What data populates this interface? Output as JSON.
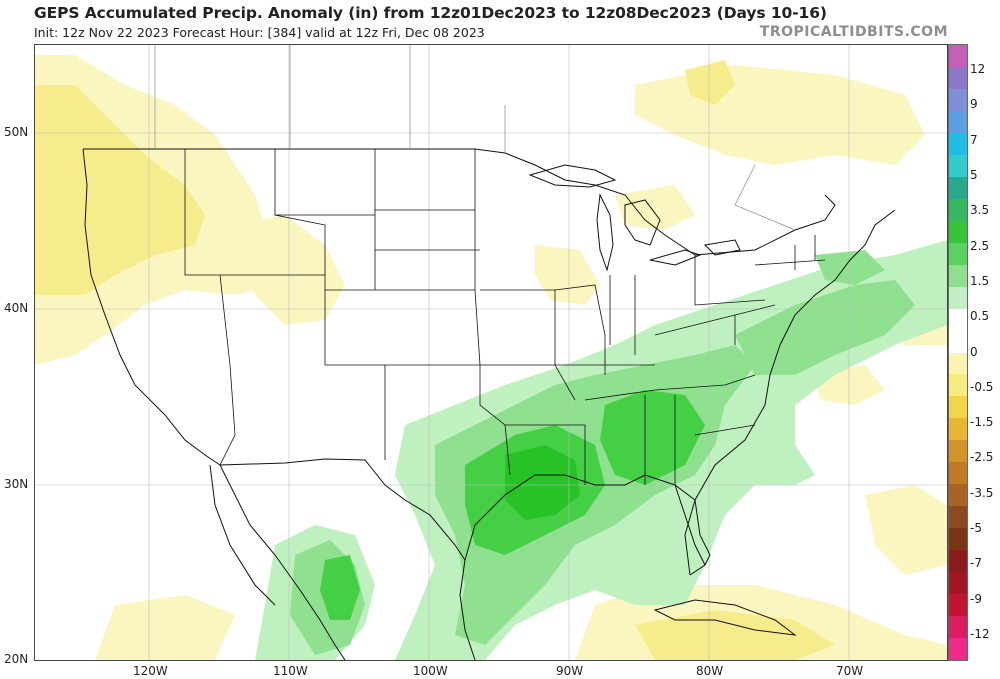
{
  "header": {
    "title": "GEPS Accumulated Precip. Anomaly (in) from 12z01Dec2023 to 12z08Dec2023 (Days 10-16)",
    "subtitle": "Init: 12z Nov 22 2023   Forecast Hour: [384]   valid at 12z Fri, Dec 08 2023",
    "brand": "TROPICALTIDBITS.COM"
  },
  "axes": {
    "lat_labels": [
      "50N",
      "40N",
      "30N",
      "20N"
    ],
    "lon_labels": [
      "120W",
      "110W",
      "100W",
      "90W",
      "80W",
      "70W"
    ]
  },
  "colorbar": {
    "labels": [
      "12",
      "9",
      "7",
      "5",
      "3.5",
      "2.5",
      "1.5",
      "0.5",
      "0",
      "-0.5",
      "-1.5",
      "-2.5",
      "-3.5",
      "-5",
      "-7",
      "-9",
      "-12"
    ],
    "colors": [
      "#c65fb8",
      "#8c78c8",
      "#7f8fd6",
      "#5b9ee2",
      "#1fbde8",
      "#33cccc",
      "#2aa88e",
      "#36b760",
      "#37c43b",
      "#5ad25f",
      "#8ee08e",
      "#c4efc4",
      "#ffffff",
      "#ffffff",
      "#fbf3b2",
      "#f7ea7f",
      "#f2d54a",
      "#e9b736",
      "#d4932a",
      "#c07a26",
      "#a96324",
      "#8c4a21",
      "#7a3516",
      "#8b1a1a",
      "#a3151f",
      "#c2142e",
      "#dd1d63",
      "#ee2b8b"
    ]
  },
  "map": {
    "region": "Continental United States, southern Canada, Mexico",
    "anomaly_colors": {
      "light_green": "#bff0bf",
      "medium_green": "#8fe08f",
      "green": "#45cf45",
      "dark_green": "#26c226",
      "light_yellow": "#fbf5c0",
      "yellow": "#f6ec8c"
    }
  }
}
